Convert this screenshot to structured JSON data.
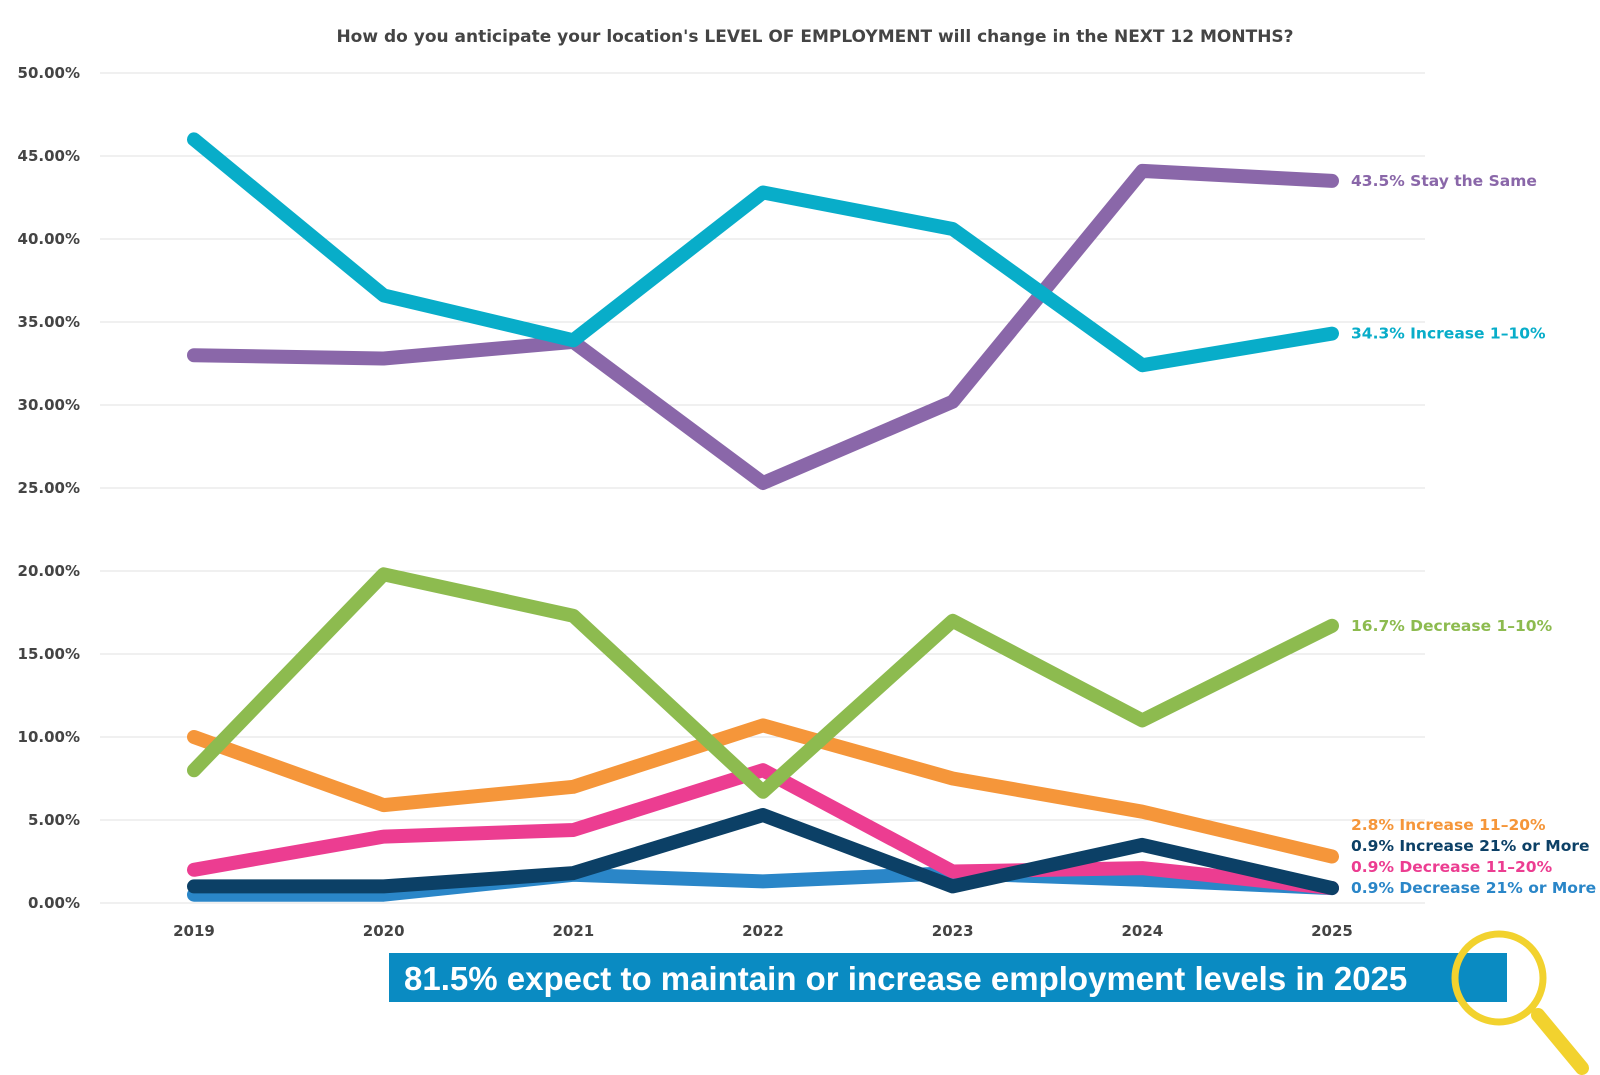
{
  "chart_data": {
    "type": "line",
    "title": "How do you anticipate your location's LEVEL OF EMPLOYMENT will change in the NEXT 12 MONTHS?",
    "xlabel": "",
    "ylabel": "",
    "ylim": [
      0,
      50
    ],
    "y_ticks": [
      "0.00%",
      "5.00%",
      "10.00%",
      "15.00%",
      "20.00%",
      "25.00%",
      "30.00%",
      "35.00%",
      "40.00%",
      "45.00%",
      "50.00%"
    ],
    "categories": [
      "2019",
      "2020",
      "2021",
      "2022",
      "2023",
      "2024",
      "2025"
    ],
    "grid": true,
    "series": [
      {
        "name": "Decrease 21% or More",
        "color": "#2a86c8",
        "values": [
          0.5,
          0.5,
          1.7,
          1.3,
          1.8,
          1.4,
          0.9
        ],
        "label": "0.9% Decrease 21% or More"
      },
      {
        "name": "Decrease 11–20%",
        "color": "#ec3d91",
        "values": [
          2.0,
          4.0,
          4.4,
          8.0,
          1.9,
          2.1,
          0.9
        ],
        "label": "0.9% Decrease 11–20%"
      },
      {
        "name": "Increase 21% or More",
        "color": "#0c4066",
        "values": [
          1.0,
          1.0,
          1.8,
          5.3,
          1.0,
          3.5,
          0.9
        ],
        "label": "0.9% Increase 21% or More"
      },
      {
        "name": "Increase 11–20%",
        "color": "#f5963a",
        "values": [
          10.0,
          5.9,
          7.0,
          10.7,
          7.5,
          5.5,
          2.8
        ],
        "label": "2.8% Increase 11–20%"
      },
      {
        "name": "Decrease 1–10%",
        "color": "#8dbb4f",
        "values": [
          8.0,
          19.8,
          17.3,
          6.7,
          17.0,
          11.0,
          16.7
        ],
        "label": "16.7% Decrease 1–10%"
      },
      {
        "name": "Stay the Same",
        "color": "#8a67a9",
        "values": [
          33.0,
          32.8,
          33.8,
          25.3,
          30.2,
          44.1,
          43.5
        ],
        "label": "43.5% Stay the Same"
      },
      {
        "name": "Increase 1–10%",
        "color": "#08adc9",
        "values": [
          46.0,
          36.6,
          33.9,
          42.8,
          40.6,
          32.4,
          34.3
        ],
        "label": "34.3% Increase 1–10%"
      }
    ],
    "annotation": "81.5% expect to maintain or increase employment levels in 2025"
  },
  "colors": {
    "banner": "#0a8bc2",
    "magnifier": "#f2d22e",
    "grid": "#e0e0e0",
    "axis_text": "#444444"
  },
  "icons": {
    "magnifier": "magnifying-glass-icon"
  }
}
